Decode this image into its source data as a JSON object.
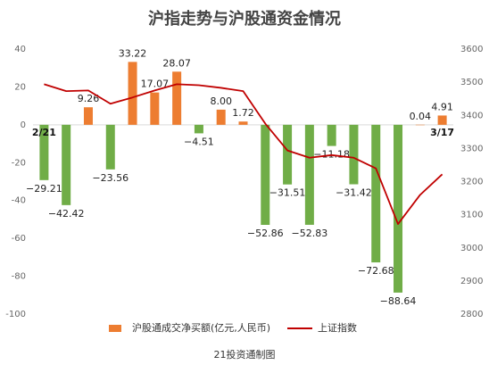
{
  "chart_data": {
    "type": "bar_line",
    "title": "沪指走势与沪股通资金情况",
    "footer": "21投资通制图",
    "categories": [
      "2/21",
      null,
      null,
      null,
      null,
      null,
      null,
      null,
      null,
      null,
      null,
      null,
      null,
      null,
      null,
      null,
      null,
      null,
      "3/17"
    ],
    "series": [
      {
        "name": "沪股通成交净买额(亿元,人民币)",
        "type": "bar",
        "axis": "y",
        "color": "#ed7d31",
        "negative_color": "#70ad47",
        "values": [
          -29.21,
          -42.42,
          9.26,
          -23.56,
          33.22,
          17.07,
          28.07,
          -4.51,
          8.0,
          1.72,
          -52.86,
          -31.51,
          -52.83,
          -11.18,
          -31.42,
          -72.68,
          -88.64,
          0.04,
          4.91
        ],
        "value_labels": [
          "−29.21",
          "−42.42",
          "9.26",
          "−23.56",
          "33.22",
          "17.07",
          "28.07",
          "−4.51",
          "8.00",
          "1.72",
          "−52.86",
          "−31.51",
          "−52.83",
          "−11.18",
          "−31.42",
          "−72.68",
          "−88.64",
          "0.04",
          "4.91"
        ]
      },
      {
        "name": "上证指数",
        "type": "line",
        "axis": "y2",
        "color": "#c00000",
        "values": [
          3494,
          3473,
          3475,
          3435,
          3454,
          3475,
          3494,
          3491,
          3483,
          3473,
          3375,
          3294,
          3272,
          3280,
          3272,
          3240,
          3072,
          3160,
          3222
        ]
      }
    ],
    "ylim": [
      -100,
      40
    ],
    "yticks": [
      -100,
      -80,
      -60,
      -40,
      -20,
      0,
      20,
      40
    ],
    "y2lim": [
      2800,
      3600
    ],
    "y2ticks": [
      2800,
      2900,
      3000,
      3100,
      3200,
      3300,
      3400,
      3500,
      3600
    ],
    "legend": "bottom"
  }
}
